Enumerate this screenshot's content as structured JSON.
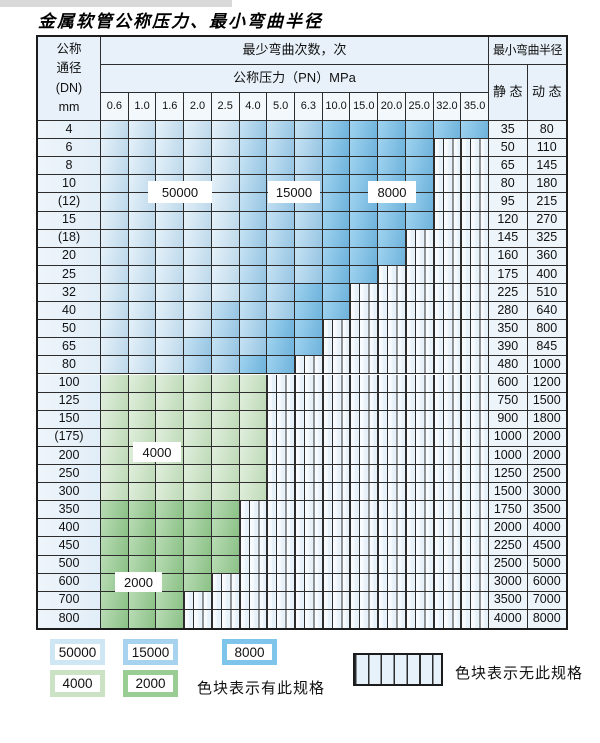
{
  "title": "金属软管公称压力、最小弯曲半径",
  "chart_data": {
    "type": "table",
    "corner_header_lines": [
      "公称",
      "通径",
      "(DN)",
      "mm"
    ],
    "bend_cycles_header": "最少弯曲次数，次",
    "pressure_header": "公称压力（PN）MPa",
    "radius_header": "最小弯曲半径",
    "static_label": "静 态",
    "dynamic_label": "动 态",
    "pressure_columns": [
      "0.6",
      "1.0",
      "1.6",
      "2.0",
      "2.5",
      "4.0",
      "5.0",
      "6.3",
      "10.0",
      "15.0",
      "20.0",
      "25.0",
      "32.0",
      "35.0"
    ],
    "zone_codes": {
      "L": 50000,
      "M": 15000,
      "D": 8000,
      "g": 4000,
      "G": 2000,
      "x": null
    },
    "rows": [
      {
        "dn": "4",
        "zones": "LLLLLMMMDDDDDD",
        "static": "35",
        "dynamic": "80"
      },
      {
        "dn": "6",
        "zones": "LLLLLMMMDDDDxx",
        "static": "50",
        "dynamic": "110"
      },
      {
        "dn": "8",
        "zones": "LLLLLMMMDDDDxx",
        "static": "65",
        "dynamic": "145"
      },
      {
        "dn": "10",
        "zones": "LLLLLMMMDDDDxx",
        "static": "80",
        "dynamic": "180"
      },
      {
        "dn": "(12)",
        "zones": "LLLLLMMMDDDDxx",
        "static": "95",
        "dynamic": "215"
      },
      {
        "dn": "15",
        "zones": "LLLLLMMMDDDDxx",
        "static": "120",
        "dynamic": "270"
      },
      {
        "dn": "(18)",
        "zones": "LLLLLMMMDDDxxx",
        "static": "145",
        "dynamic": "325"
      },
      {
        "dn": "20",
        "zones": "LLLLLMMMDDDxxx",
        "static": "160",
        "dynamic": "360"
      },
      {
        "dn": "25",
        "zones": "LLLLLMMMDDxxxx",
        "static": "175",
        "dynamic": "400"
      },
      {
        "dn": "32",
        "zones": "LLLLLMMDDxxxxx",
        "static": "225",
        "dynamic": "510"
      },
      {
        "dn": "40",
        "zones": "LLLLMMMDDxxxxx",
        "static": "280",
        "dynamic": "640"
      },
      {
        "dn": "50",
        "zones": "LLLLMMDDxxxxxx",
        "static": "350",
        "dynamic": "800"
      },
      {
        "dn": "65",
        "zones": "LLLMMMDDxxxxxx",
        "static": "390",
        "dynamic": "845"
      },
      {
        "dn": "80",
        "zones": "LLLMMDDxxxxxxx",
        "static": "480",
        "dynamic": "1000"
      },
      {
        "dn": "100",
        "zones": "ggggggxxxxxxxx",
        "static": "600",
        "dynamic": "1200"
      },
      {
        "dn": "125",
        "zones": "ggggggxxxxxxxx",
        "static": "750",
        "dynamic": "1500"
      },
      {
        "dn": "150",
        "zones": "ggggggxxxxxxxx",
        "static": "900",
        "dynamic": "1800"
      },
      {
        "dn": "(175)",
        "zones": "ggggggxxxxxxxx",
        "static": "1000",
        "dynamic": "2000"
      },
      {
        "dn": "200",
        "zones": "ggggggxxxxxxxx",
        "static": "1000",
        "dynamic": "2000"
      },
      {
        "dn": "250",
        "zones": "ggggggxxxxxxxx",
        "static": "1250",
        "dynamic": "2500"
      },
      {
        "dn": "300",
        "zones": "ggggggxxxxxxxx",
        "static": "1500",
        "dynamic": "3000"
      },
      {
        "dn": "350",
        "zones": "GGGGGxxxxxxxxx",
        "static": "1750",
        "dynamic": "3500"
      },
      {
        "dn": "400",
        "zones": "GGGGGxxxxxxxxx",
        "static": "2000",
        "dynamic": "4000"
      },
      {
        "dn": "450",
        "zones": "GGGGGxxxxxxxxx",
        "static": "2250",
        "dynamic": "4500"
      },
      {
        "dn": "500",
        "zones": "GGGGGxxxxxxxxx",
        "static": "2500",
        "dynamic": "5000"
      },
      {
        "dn": "600",
        "zones": "GGGGxxxxxxxxxx",
        "static": "3000",
        "dynamic": "6000"
      },
      {
        "dn": "700",
        "zones": "GGGxxxxxxxxxxx",
        "static": "3500",
        "dynamic": "7000"
      },
      {
        "dn": "800",
        "zones": "GGGxxxxxxxxxxx",
        "static": "4000",
        "dynamic": "8000"
      }
    ]
  },
  "overlay_labels": [
    "50000",
    "15000",
    "8000",
    "4000",
    "2000"
  ],
  "legend": {
    "items": [
      {
        "label": "50000",
        "color": "#cfe6f5"
      },
      {
        "label": "15000",
        "color": "#a7d3ee"
      },
      {
        "label": "8000",
        "color": "#7fc4ea"
      },
      {
        "label": "4000",
        "color": "#cbe3c4"
      },
      {
        "label": "2000",
        "color": "#9acd94"
      }
    ],
    "available_note": "色块表示有此规格",
    "unavailable_note": "色块表示无此规格"
  },
  "colors": {
    "grid_line": "#2d2d2d",
    "header_bg": "#e8f1f9",
    "hatch_tint": "#e7f1f9"
  }
}
